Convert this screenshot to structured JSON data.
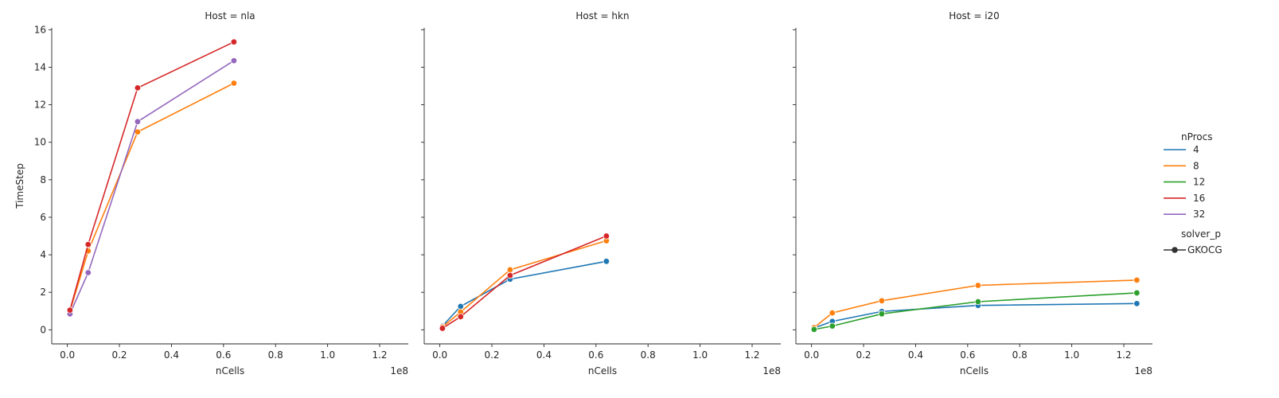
{
  "chart_data": {
    "type": "line",
    "ylabel": "TimeStep",
    "xlabel": "nCells",
    "x_offset_text": "1e8",
    "xlim": [
      -0.06,
      1.31
    ],
    "ylim": [
      -0.75,
      16.1
    ],
    "xticks": [
      0.0,
      0.2,
      0.4,
      0.6,
      0.8,
      1.0,
      1.2
    ],
    "xtick_labels": [
      "0.0",
      "0.2",
      "0.4",
      "0.6",
      "0.8",
      "1.0",
      "1.2"
    ],
    "yticks": [
      0,
      2,
      4,
      6,
      8,
      10,
      12,
      14,
      16
    ],
    "ytick_labels": [
      "0",
      "2",
      "4",
      "6",
      "8",
      "10",
      "12",
      "14",
      "16"
    ],
    "grid": false,
    "legend_position": "right",
    "legend": {
      "title_hue": "nProcs",
      "hue_entries": [
        {
          "label": "4",
          "color": "#1f77b4"
        },
        {
          "label": "8",
          "color": "#ff7f0e"
        },
        {
          "label": "12",
          "color": "#2ca02c"
        },
        {
          "label": "16",
          "color": "#d62728"
        },
        {
          "label": "32",
          "color": "#9467bd"
        }
      ],
      "title_style": "solver_p",
      "style_entries": [
        {
          "label": "GKOCG",
          "color": "#333333"
        }
      ]
    },
    "panels": [
      {
        "title": "Host = nla",
        "series": [
          {
            "name": "8",
            "color": "#ff7f0e",
            "x": [
              0.01,
              0.08,
              0.27,
              0.64
            ],
            "y": [
              1.0,
              4.2,
              10.55,
              13.15
            ]
          },
          {
            "name": "32",
            "color": "#9467bd",
            "x": [
              0.01,
              0.08,
              0.27,
              0.64
            ],
            "y": [
              0.85,
              3.05,
              11.1,
              14.35
            ]
          },
          {
            "name": "16",
            "color": "#d62728",
            "x": [
              0.01,
              0.08,
              0.27,
              0.64
            ],
            "y": [
              1.05,
              4.55,
              12.9,
              15.35
            ]
          }
        ]
      },
      {
        "title": "Host = hkn",
        "series": [
          {
            "name": "4",
            "color": "#1f77b4",
            "x": [
              0.01,
              0.08,
              0.27,
              0.64
            ],
            "y": [
              0.2,
              1.25,
              2.7,
              3.65
            ]
          },
          {
            "name": "8",
            "color": "#ff7f0e",
            "x": [
              0.01,
              0.08,
              0.27,
              0.64
            ],
            "y": [
              0.15,
              0.95,
              3.2,
              4.75
            ]
          },
          {
            "name": "16",
            "color": "#d62728",
            "x": [
              0.01,
              0.08,
              0.27,
              0.64
            ],
            "y": [
              0.08,
              0.7,
              2.9,
              5.0
            ]
          }
        ]
      },
      {
        "title": "Host = i20",
        "series": [
          {
            "name": "4",
            "color": "#1f77b4",
            "x": [
              0.01,
              0.08,
              0.27,
              0.64,
              1.25
            ],
            "y": [
              0.1,
              0.45,
              0.98,
              1.3,
              1.4
            ]
          },
          {
            "name": "8",
            "color": "#ff7f0e",
            "x": [
              0.01,
              0.08,
              0.27,
              0.64,
              1.25
            ],
            "y": [
              0.12,
              0.9,
              1.55,
              2.37,
              2.65
            ]
          },
          {
            "name": "12",
            "color": "#2ca02c",
            "x": [
              0.01,
              0.08,
              0.27,
              0.64,
              1.25
            ],
            "y": [
              0.02,
              0.2,
              0.85,
              1.5,
              1.97
            ]
          }
        ]
      }
    ]
  }
}
